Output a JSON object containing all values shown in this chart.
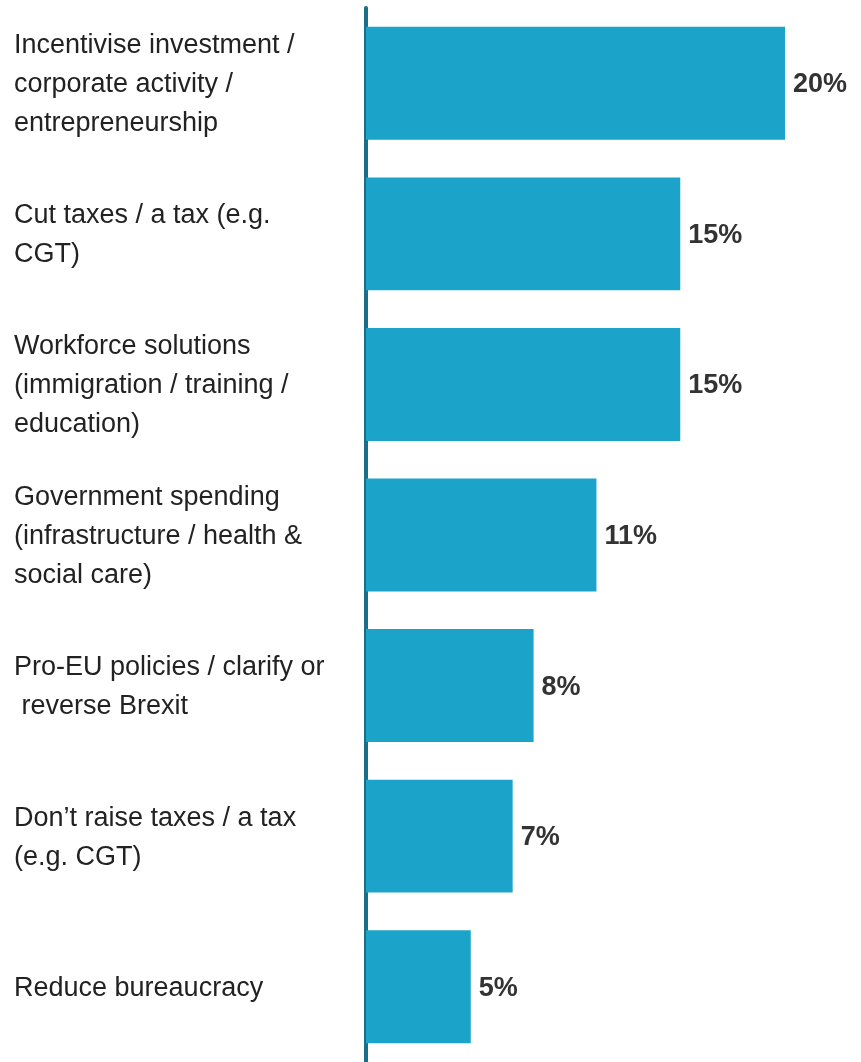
{
  "chart_data": {
    "type": "bar",
    "orientation": "horizontal",
    "categories": [
      "Incentivise investment / corporate activity / entrepreneurship",
      "Cut taxes / a tax (e.g. CGT)",
      "Workforce solutions (immigration / training / education)",
      "Government spending (infrastructure / health & social care)",
      "Pro-EU policies / clarify or reverse Brexit",
      "Don’t raise taxes / a tax (e.g. CGT)",
      "Reduce bureaucracy"
    ],
    "values": [
      20,
      15,
      15,
      11,
      8,
      7,
      5
    ],
    "value_labels": [
      "20%",
      "15%",
      "15%",
      "11%",
      "8%",
      "7%",
      "5%"
    ],
    "color": "#1ba3c9"
  }
}
